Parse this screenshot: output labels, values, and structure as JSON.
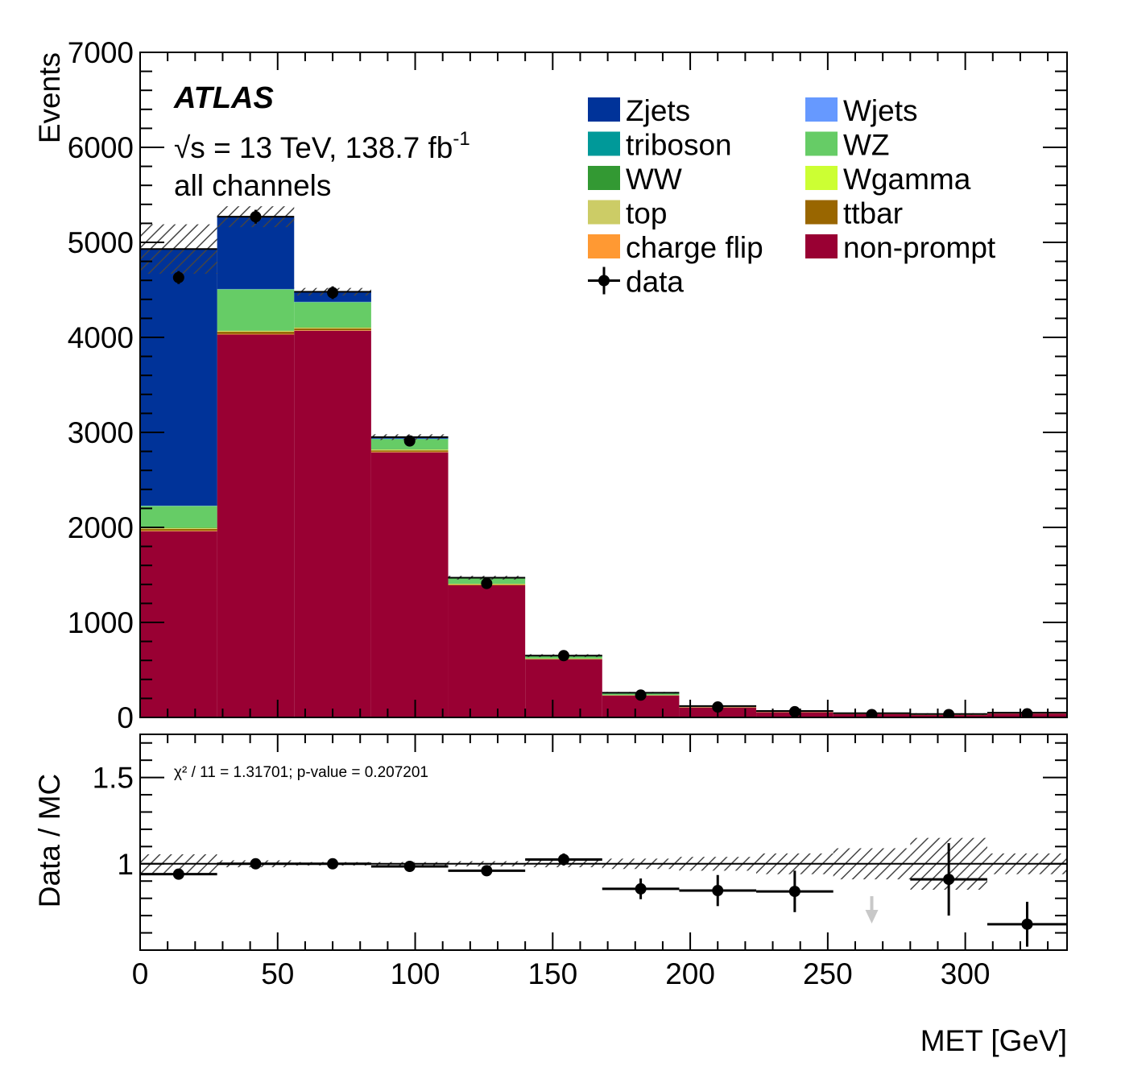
{
  "atlas": {
    "label": "ATLAS",
    "energy_prefix": "√s = 13 TeV, 138.7 fb",
    "energy_superscript": "-1",
    "region": "all channels"
  },
  "ratio_annotation": "χ² / 11 = 1.31701; p-value = 0.207201",
  "chart_data": [
    {
      "type": "bar",
      "stacked": true,
      "xlabel": "",
      "ylabel": "Events",
      "xlim": [
        0,
        337
      ],
      "ylim": [
        0,
        7000
      ],
      "y_ticks": [
        "0",
        "1000",
        "2000",
        "3000",
        "4000",
        "5000",
        "6000",
        "7000"
      ],
      "legend_position": "top-right",
      "bin_edges": [
        0,
        28,
        56,
        84,
        112,
        140,
        168,
        196,
        224,
        252,
        280,
        308,
        337
      ],
      "series": [
        {
          "name": "non-prompt",
          "color": "#990033",
          "values": [
            1960,
            4030,
            4070,
            2790,
            1390,
            610,
            230,
            105,
            55,
            35,
            25,
            40
          ]
        },
        {
          "name": "charge flip",
          "color": "#ff9933",
          "values": [
            5,
            5,
            5,
            5,
            3,
            2,
            1,
            1,
            1,
            1,
            1,
            1
          ]
        },
        {
          "name": "ttbar",
          "color": "#996600",
          "values": [
            20,
            25,
            20,
            15,
            8,
            5,
            3,
            2,
            1,
            1,
            1,
            1
          ]
        },
        {
          "name": "top",
          "color": "#cccc66",
          "values": [
            5,
            5,
            5,
            5,
            3,
            2,
            1,
            1,
            1,
            1,
            1,
            1
          ]
        },
        {
          "name": "Wgamma",
          "color": "#ccff33",
          "values": [
            5,
            5,
            5,
            5,
            3,
            2,
            1,
            1,
            1,
            1,
            1,
            1
          ]
        },
        {
          "name": "WW",
          "color": "#339933",
          "values": [
            5,
            5,
            5,
            5,
            3,
            2,
            1,
            1,
            1,
            1,
            1,
            1
          ]
        },
        {
          "name": "WZ",
          "color": "#66cc66",
          "values": [
            225,
            430,
            260,
            105,
            55,
            25,
            15,
            8,
            5,
            3,
            3,
            3
          ]
        },
        {
          "name": "triboson",
          "color": "#009999",
          "values": [
            2,
            2,
            2,
            2,
            1,
            1,
            1,
            1,
            1,
            1,
            1,
            1
          ]
        },
        {
          "name": "Wjets",
          "color": "#6699ff",
          "values": [
            2,
            2,
            2,
            2,
            1,
            1,
            1,
            1,
            1,
            1,
            1,
            1
          ]
        },
        {
          "name": "Zjets",
          "color": "#003399",
          "values": [
            2700,
            760,
            110,
            10,
            5,
            3,
            2,
            1,
            1,
            1,
            1,
            1
          ]
        }
      ],
      "totals": [
        4930,
        5270,
        4480,
        2950,
        1470,
        650,
        260,
        120,
        68,
        45,
        36,
        50
      ],
      "uncertainty": [
        260,
        110,
        40,
        30,
        20,
        15,
        8,
        5,
        4,
        4,
        8,
        5
      ],
      "data": {
        "name": "data",
        "values": [
          4630,
          5270,
          4470,
          2910,
          1410,
          650,
          235,
          110,
          60,
          30,
          30,
          38
        ]
      },
      "legend": [
        {
          "name": "Zjets",
          "color": "#003399"
        },
        {
          "name": "Wjets",
          "color": "#6699ff"
        },
        {
          "name": "triboson",
          "color": "#009999"
        },
        {
          "name": "WZ",
          "color": "#66cc66"
        },
        {
          "name": "WW",
          "color": "#339933"
        },
        {
          "name": "Wgamma",
          "color": "#ccff33"
        },
        {
          "name": "top",
          "color": "#cccc66"
        },
        {
          "name": "ttbar",
          "color": "#996600"
        },
        {
          "name": "charge flip",
          "color": "#ff9933"
        },
        {
          "name": "non-prompt",
          "color": "#990033"
        },
        {
          "name": "data",
          "marker": "point-with-errorbar"
        }
      ]
    },
    {
      "type": "scatter",
      "xlabel": "MET [GeV]",
      "ylabel": "Data / MC",
      "xlim": [
        0,
        337
      ],
      "ylim": [
        0.5,
        1.75
      ],
      "x_ticks": [
        "0",
        "50",
        "100",
        "150",
        "200",
        "250",
        "300"
      ],
      "y_ticks": [
        "1",
        "1.5"
      ],
      "reference_line": 1,
      "bin_edges": [
        0,
        28,
        56,
        84,
        112,
        140,
        168,
        196,
        224,
        252,
        280,
        308,
        337
      ],
      "ratio": [
        0.94,
        1.0,
        1.0,
        0.985,
        0.96,
        1.025,
        0.855,
        0.845,
        0.84,
        null,
        0.91,
        0.65
      ],
      "ratio_err": [
        0.015,
        0.012,
        0.012,
        0.015,
        0.02,
        0.035,
        0.06,
        0.09,
        0.12,
        null,
        0.21,
        0.13
      ],
      "band_half_width": [
        0.055,
        0.02,
        0.01,
        0.01,
        0.015,
        0.02,
        0.03,
        0.04,
        0.06,
        0.09,
        0.15,
        0.06
      ],
      "off_scale_arrow_bins": [
        9
      ]
    }
  ]
}
